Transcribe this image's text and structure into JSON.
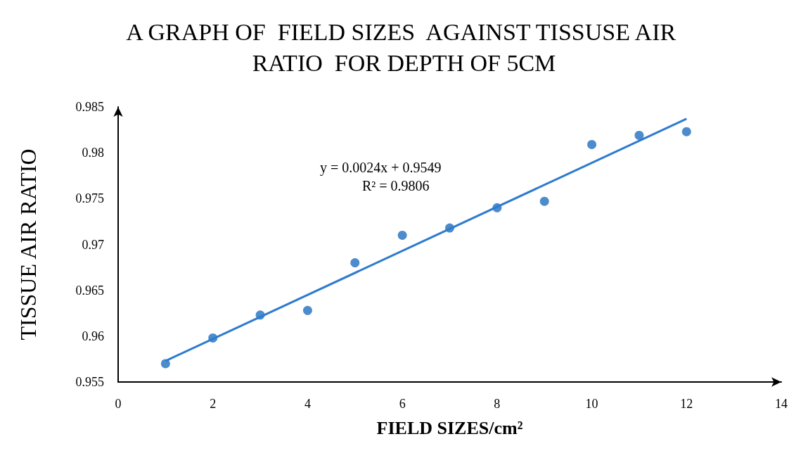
{
  "chart_data": {
    "type": "scatter",
    "title": "A GRAPH OF  FIELD SIZES  AGAINST TISSUSE AIR RATIO  FOR DEPTH OF 5CM",
    "xlabel": "FIELD SIZES/cm²",
    "ylabel": "TISSUE AIR RATIO",
    "x": [
      1,
      2,
      3,
      4,
      5,
      6,
      7,
      8,
      9,
      10,
      11,
      12
    ],
    "series": [
      {
        "color": "#1f6fc0",
        "marker": "circle",
        "values": [
          0.957,
          0.9598,
          0.9623,
          0.9628,
          0.968,
          0.971,
          0.9718,
          0.974,
          0.9747,
          0.9809,
          0.9819,
          0.9823
        ]
      },
      {
        "type": "line",
        "color": "#2e7bcf",
        "x": [
          1,
          12
        ],
        "values": [
          0.9573,
          0.9837
        ]
      }
    ],
    "xlim": [
      0,
      14
    ],
    "xticks": [
      0,
      2,
      4,
      6,
      8,
      10,
      12,
      14
    ],
    "ylim": [
      0.955,
      0.985
    ],
    "yticks": [
      0.955,
      0.96,
      0.965,
      0.97,
      0.975,
      0.98,
      0.985
    ],
    "annotations": [
      "y = 0.0024x + 0.9549",
      "R² = 0.9806"
    ]
  }
}
